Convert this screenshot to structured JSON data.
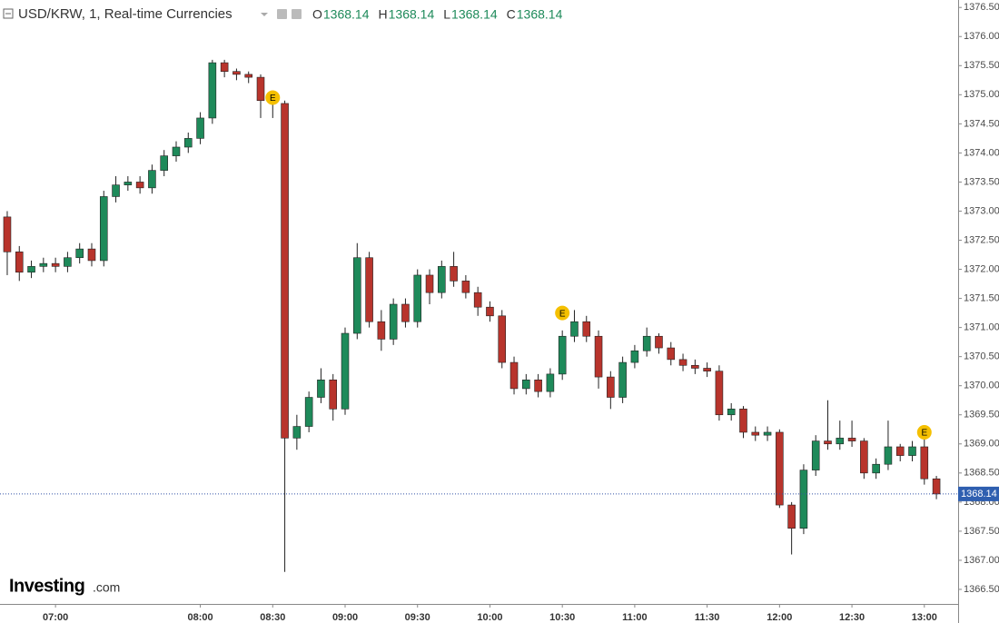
{
  "chart_data": {
    "type": "candlestick",
    "title": "USD/KRW, 1, Real-time Currencies",
    "ohlc_legend": [
      {
        "label": "O",
        "value": 1368.14
      },
      {
        "label": "H",
        "value": 1368.14
      },
      {
        "label": "L",
        "value": 1368.14
      },
      {
        "label": "C",
        "value": 1368.14
      }
    ],
    "last_price": 1368.14,
    "logo": {
      "name": "Investing",
      "suffix": ".com"
    },
    "up_color": "#1e8a5a",
    "down_color": "#b8342c",
    "x": [
      "06:40",
      "06:45",
      "06:50",
      "06:55",
      "07:00",
      "07:05",
      "07:10",
      "07:15",
      "07:20",
      "07:25",
      "07:30",
      "07:35",
      "07:40",
      "07:45",
      "07:50",
      "07:55",
      "08:00",
      "08:05",
      "08:10",
      "08:15",
      "08:20",
      "08:25",
      "08:30",
      "08:35",
      "08:40",
      "08:45",
      "08:50",
      "08:55",
      "09:00",
      "09:05",
      "09:10",
      "09:15",
      "09:20",
      "09:25",
      "09:30",
      "09:35",
      "09:40",
      "09:45",
      "09:50",
      "09:55",
      "10:00",
      "10:05",
      "10:10",
      "10:15",
      "10:20",
      "10:25",
      "10:30",
      "10:35",
      "10:40",
      "10:45",
      "10:50",
      "10:55",
      "11:00",
      "11:05",
      "11:10",
      "11:15",
      "11:20",
      "11:25",
      "11:30",
      "11:35",
      "11:40",
      "11:45",
      "11:50",
      "11:55",
      "12:00",
      "12:05",
      "12:10",
      "12:15",
      "12:20",
      "12:25",
      "12:30",
      "12:35",
      "12:40",
      "12:45",
      "12:50",
      "12:55",
      "13:00",
      "13:05"
    ],
    "open": [
      1372.9,
      1372.3,
      1371.95,
      1372.05,
      1372.1,
      1372.05,
      1372.2,
      1372.35,
      1372.15,
      1373.25,
      1373.45,
      1373.5,
      1373.4,
      1373.7,
      1373.95,
      1374.1,
      1374.25,
      1374.6,
      1375.55,
      1375.4,
      1375.35,
      1375.3,
      1374.9,
      1374.85,
      1369.1,
      1369.3,
      1369.8,
      1370.1,
      1369.6,
      1370.9,
      1372.2,
      1371.1,
      1370.8,
      1371.4,
      1371.1,
      1371.9,
      1371.6,
      1372.05,
      1371.8,
      1371.6,
      1371.35,
      1371.2,
      1370.4,
      1369.95,
      1370.1,
      1369.9,
      1370.2,
      1370.85,
      1371.1,
      1370.85,
      1370.15,
      1369.8,
      1370.4,
      1370.6,
      1370.85,
      1370.65,
      1370.45,
      1370.35,
      1370.3,
      1370.25,
      1369.5,
      1369.6,
      1369.2,
      1369.15,
      1369.2,
      1367.95,
      1367.55,
      1368.55,
      1369.05,
      1369.0,
      1369.1,
      1369.05,
      1368.5,
      1368.65,
      1368.95,
      1368.8,
      1368.95,
      1368.4
    ],
    "high": [
      1373.0,
      1372.4,
      1372.15,
      1372.2,
      1372.2,
      1372.3,
      1372.45,
      1372.45,
      1373.35,
      1373.6,
      1373.6,
      1373.6,
      1373.8,
      1374.05,
      1374.2,
      1374.35,
      1374.7,
      1375.6,
      1375.6,
      1375.45,
      1375.4,
      1375.35,
      1375.0,
      1374.9,
      1369.5,
      1369.9,
      1370.3,
      1370.2,
      1371.0,
      1372.45,
      1372.3,
      1371.3,
      1371.5,
      1371.5,
      1372.0,
      1372.0,
      1372.15,
      1372.3,
      1371.9,
      1371.7,
      1371.45,
      1371.3,
      1370.5,
      1370.2,
      1370.2,
      1370.3,
      1370.95,
      1371.3,
      1371.2,
      1370.95,
      1370.25,
      1370.5,
      1370.7,
      1371.0,
      1370.9,
      1370.75,
      1370.55,
      1370.45,
      1370.4,
      1370.35,
      1369.7,
      1369.65,
      1369.3,
      1369.3,
      1369.25,
      1368.0,
      1368.65,
      1369.15,
      1369.75,
      1369.4,
      1369.4,
      1369.1,
      1368.75,
      1369.4,
      1369.0,
      1369.05,
      1369.2,
      1368.45
    ],
    "low": [
      1371.9,
      1371.8,
      1371.85,
      1371.95,
      1371.95,
      1371.95,
      1372.1,
      1372.05,
      1372.05,
      1373.15,
      1373.35,
      1373.3,
      1373.3,
      1373.6,
      1373.85,
      1374.0,
      1374.15,
      1374.5,
      1375.3,
      1375.25,
      1375.2,
      1374.6,
      1374.6,
      1366.8,
      1368.9,
      1369.2,
      1369.7,
      1369.4,
      1369.5,
      1370.8,
      1371.0,
      1370.6,
      1370.7,
      1371.0,
      1371.0,
      1371.4,
      1371.5,
      1371.7,
      1371.5,
      1371.2,
      1371.1,
      1370.3,
      1369.85,
      1369.85,
      1369.8,
      1369.8,
      1370.1,
      1370.75,
      1370.75,
      1369.95,
      1369.6,
      1369.7,
      1370.3,
      1370.5,
      1370.55,
      1370.35,
      1370.25,
      1370.2,
      1370.15,
      1369.4,
      1369.4,
      1369.1,
      1369.05,
      1369.05,
      1367.9,
      1367.1,
      1367.45,
      1368.45,
      1368.9,
      1368.9,
      1368.95,
      1368.4,
      1368.4,
      1368.55,
      1368.7,
      1368.7,
      1368.3,
      1368.05
    ],
    "close": [
      1372.3,
      1371.95,
      1372.05,
      1372.1,
      1372.05,
      1372.2,
      1372.35,
      1372.15,
      1373.25,
      1373.45,
      1373.5,
      1373.4,
      1373.7,
      1373.95,
      1374.1,
      1374.25,
      1374.6,
      1375.55,
      1375.4,
      1375.35,
      1375.3,
      1374.9,
      1374.85,
      1369.1,
      1369.3,
      1369.8,
      1370.1,
      1369.6,
      1370.9,
      1372.2,
      1371.1,
      1370.8,
      1371.4,
      1371.1,
      1371.9,
      1371.6,
      1372.05,
      1371.8,
      1371.6,
      1371.35,
      1371.2,
      1370.4,
      1369.95,
      1370.1,
      1369.9,
      1370.2,
      1370.85,
      1371.1,
      1370.85,
      1370.15,
      1369.8,
      1370.4,
      1370.6,
      1370.85,
      1370.65,
      1370.45,
      1370.35,
      1370.3,
      1370.25,
      1369.5,
      1369.6,
      1369.2,
      1369.15,
      1369.2,
      1367.95,
      1367.55,
      1368.55,
      1369.05,
      1369.0,
      1369.1,
      1369.05,
      1368.5,
      1368.65,
      1368.95,
      1368.8,
      1368.95,
      1368.4,
      1368.14
    ],
    "events": [
      {
        "x": "08:30",
        "y": 1374.95,
        "label": "E"
      },
      {
        "x": "10:30",
        "y": 1371.25,
        "label": "E"
      },
      {
        "x": "13:00",
        "y": 1369.2,
        "label": "E"
      }
    ],
    "xlim": [
      "06:37",
      "13:14"
    ],
    "xticks": [
      "07:00",
      "08:00",
      "08:30",
      "09:00",
      "09:30",
      "10:00",
      "10:30",
      "11:00",
      "11:30",
      "12:00",
      "12:30",
      "13:00"
    ],
    "ylim": [
      1366.25,
      1376.55
    ],
    "yticks": [
      {
        "value": 1366.5,
        "label": "1366.50"
      },
      {
        "value": 1367,
        "label": "1367.00"
      },
      {
        "value": 1367.5,
        "label": "1367.50"
      },
      {
        "value": 1368,
        "label": "1368.00"
      },
      {
        "value": 1368.5,
        "label": "1368.50"
      },
      {
        "value": 1369,
        "label": "1369.00"
      },
      {
        "value": 1369.5,
        "label": "1369.50"
      },
      {
        "value": 1370,
        "label": "1370.00"
      },
      {
        "value": 1370.5,
        "label": "1370.50"
      },
      {
        "value": 1371,
        "label": "1371.00"
      },
      {
        "value": 1371.5,
        "label": "1371.50"
      },
      {
        "value": 1372,
        "label": "1372.00"
      },
      {
        "value": 1372.5,
        "label": "1372.50"
      },
      {
        "value": 1373,
        "label": "1373.00"
      },
      {
        "value": 1373.5,
        "label": "1373.50"
      },
      {
        "value": 1374,
        "label": "1374.00"
      },
      {
        "value": 1374.5,
        "label": "1374.50"
      },
      {
        "value": 1375,
        "label": "1375.00"
      },
      {
        "value": 1375.5,
        "label": "1375.50"
      },
      {
        "value": 1376,
        "label": "1376.00"
      },
      {
        "value": 1376.5,
        "label": "1376.50"
      }
    ],
    "grid": false
  }
}
